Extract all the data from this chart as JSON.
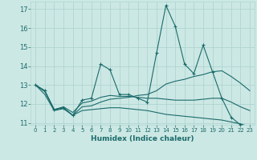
{
  "xlabel": "Humidex (Indice chaleur)",
  "xlim": [
    -0.5,
    23.5
  ],
  "ylim": [
    10.9,
    17.4
  ],
  "yticks": [
    11,
    12,
    13,
    14,
    15,
    16,
    17
  ],
  "xticks": [
    0,
    1,
    2,
    3,
    4,
    5,
    6,
    7,
    8,
    9,
    10,
    11,
    12,
    13,
    14,
    15,
    16,
    17,
    18,
    19,
    20,
    21,
    22,
    23
  ],
  "bg_color": "#cce8e4",
  "grid_color": "#b0d4d0",
  "line_color": "#1a6b6b",
  "lines": [
    [
      13.0,
      12.7,
      11.7,
      11.8,
      11.4,
      12.2,
      12.3,
      14.1,
      13.8,
      12.5,
      12.5,
      12.3,
      12.1,
      14.7,
      17.2,
      16.1,
      14.1,
      13.6,
      15.1,
      13.7,
      12.3,
      11.3,
      10.9,
      10.8
    ],
    [
      13.0,
      12.7,
      11.7,
      11.85,
      11.55,
      12.05,
      12.15,
      12.35,
      12.45,
      12.4,
      12.4,
      12.35,
      12.3,
      12.3,
      12.25,
      12.2,
      12.2,
      12.2,
      12.25,
      12.3,
      12.3,
      12.1,
      11.85,
      11.65
    ],
    [
      13.0,
      12.65,
      11.7,
      11.8,
      11.4,
      11.85,
      11.9,
      12.1,
      12.25,
      12.3,
      12.35,
      12.45,
      12.5,
      12.7,
      13.05,
      13.2,
      13.3,
      13.45,
      13.55,
      13.7,
      13.75,
      13.45,
      13.1,
      12.7
    ],
    [
      13.0,
      12.5,
      11.65,
      11.75,
      11.4,
      11.65,
      11.7,
      11.75,
      11.8,
      11.8,
      11.75,
      11.7,
      11.65,
      11.55,
      11.45,
      11.4,
      11.35,
      11.3,
      11.25,
      11.2,
      11.15,
      11.05,
      10.95,
      10.8
    ]
  ]
}
